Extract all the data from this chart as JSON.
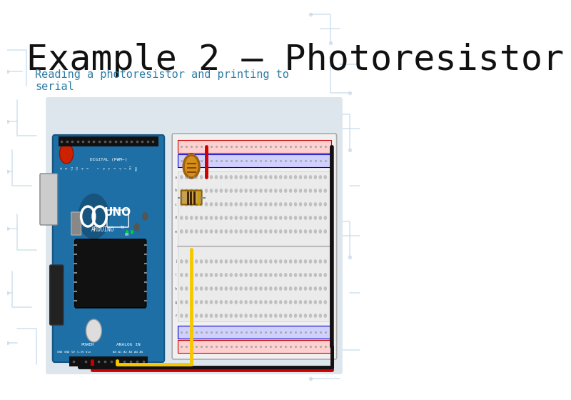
{
  "title": "Example 2 – Photoresistor",
  "subtitle_line1": "Reading a photoresistor and printing to",
  "subtitle_line2": "serial",
  "title_color": "#111111",
  "subtitle_color": "#2e7da6",
  "bg_color": "#ffffff",
  "panel_bg": "#e2eaf0",
  "title_fontsize": 36,
  "subtitle_fontsize": 11,
  "circuit_bg": "#dde6ed",
  "wire_red": "#cc0000",
  "wire_yellow": "#f5c800",
  "wire_black": "#111111",
  "arduino_blue": "#1e6fa5",
  "arduino_dark": "#17547e",
  "breadboard_bg": "#f0f0f0",
  "breadboard_edge": "#cccccc",
  "rail_red_bg": "#ffd0d0",
  "rail_red_edge": "#cc0000",
  "rail_blue_bg": "#d0d0ff",
  "rail_blue_edge": "#0000cc",
  "hole_color": "#c0c0c0",
  "ldr_color": "#d4901a",
  "ldr_edge": "#a06010",
  "resistor_color": "#c8a050",
  "resistor_edge": "#8B6000"
}
